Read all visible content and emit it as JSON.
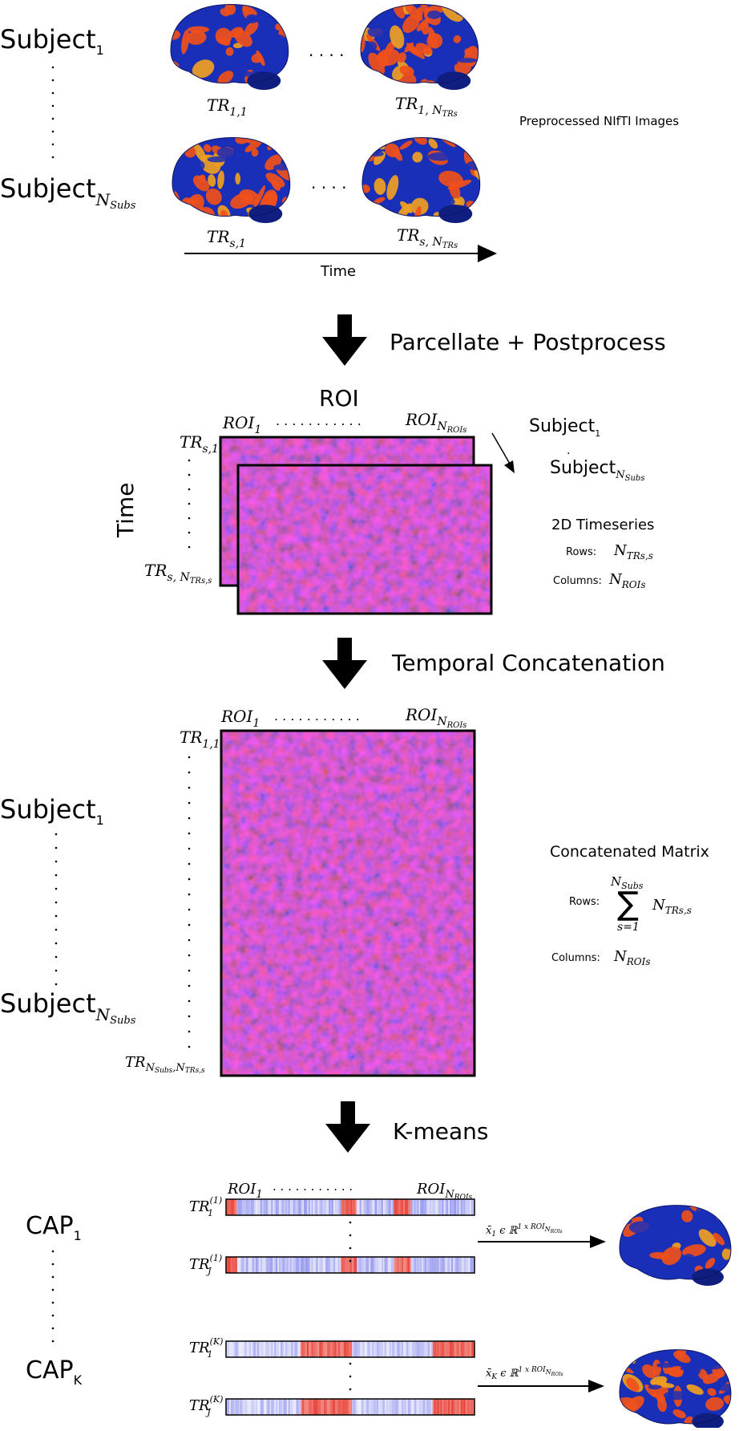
{
  "colors": {
    "matrix_base": "#e6c6e2",
    "heat_red": "#e8443a",
    "heat_blue": "#6f72e8",
    "brain_blue": "#1a2fb8",
    "brain_orange": "#f0501a",
    "arrow": "#000000"
  },
  "top": {
    "subject_1": {
      "base": "Subject",
      "sub": "1"
    },
    "subject_n": {
      "base": "Subject",
      "sub": "N",
      "subsub": "Subs"
    },
    "tr_1_1": {
      "base": "TR",
      "sub": "1,1"
    },
    "tr_1_n": {
      "base": "TR",
      "sub": "1, N",
      "subsub": "TRs"
    },
    "tr_s_1": {
      "base": "TR",
      "sub": "s,1"
    },
    "tr_s_n": {
      "base": "TR",
      "sub": "s, N",
      "subsub": "TRs"
    },
    "time_label": "Time",
    "side_label": "Preprocessed NIfTI Images",
    "dots": ". . . ."
  },
  "steps": {
    "step1": "Parcellate + Postprocess",
    "step2": "Temporal Concatenation",
    "step3": "K-means"
  },
  "timeseries": {
    "roi_title": "ROI",
    "time_title": "Time",
    "roi_1": {
      "base": "ROI",
      "sub": "1"
    },
    "roi_n": {
      "base": "ROI",
      "sub": "N",
      "subsub": "ROIs"
    },
    "tr_s_1": {
      "base": "TR",
      "sub": "s,1"
    },
    "tr_s_n": {
      "base": "TR",
      "sub": "s, N",
      "subsub": "TRs,s"
    },
    "subject_1": {
      "base": "Subject",
      "sub": "1"
    },
    "subject_n": {
      "base": "Subject",
      "sub": "N",
      "subsub": "Subs"
    },
    "info_title": "2D Timeseries",
    "rows_label": "Rows:",
    "rows_value": {
      "base": "N",
      "sub": "TRs,s"
    },
    "cols_label": "Columns:",
    "cols_value": {
      "base": "N",
      "sub": "ROIs"
    },
    "dots": ". . . . . . . . . . ."
  },
  "concat": {
    "roi_1": {
      "base": "ROI",
      "sub": "1"
    },
    "roi_n": {
      "base": "ROI",
      "sub": "N",
      "subsub": "ROIs"
    },
    "tr_1_1": {
      "base": "TR",
      "sub": "1,1"
    },
    "tr_last": {
      "base": "TR",
      "sub": "N",
      "subsub": "Subs",
      "tail": ",N",
      "tailsub": "TRs,s"
    },
    "subject_1": {
      "base": "Subject",
      "sub": "1"
    },
    "subject_n": {
      "base": "Subject",
      "sub": "N",
      "subsub": "Subs"
    },
    "info_title": "Concatenated Matrix",
    "rows_label": "Rows:",
    "sum_top": {
      "base": "N",
      "sub": "Subs"
    },
    "sum_bottom": "s=1",
    "sum_term": {
      "base": "N",
      "sub": "TRs,s"
    },
    "cols_label": "Columns:",
    "cols_value": {
      "base": "N",
      "sub": "ROIs"
    },
    "dots": ". . . . . . . . . . ."
  },
  "kmeans": {
    "roi_1": {
      "base": "ROI",
      "sub": "1"
    },
    "roi_n": {
      "base": "ROI",
      "sub": "N",
      "subsub": "ROIs"
    },
    "cap_1": {
      "base": "CAP",
      "sub": "1"
    },
    "cap_k": {
      "base": "CAP",
      "sub": "K"
    },
    "tr_1_c1": {
      "base": "TR",
      "sub": "1",
      "sup": "(1)"
    },
    "tr_j_c1": {
      "base": "TR",
      "sub": "J",
      "sup": "(1)"
    },
    "tr_1_ck": {
      "base": "TR",
      "sub": "1",
      "sup": "(K)"
    },
    "tr_j_ck": {
      "base": "TR",
      "sub": "J",
      "sup": "(K)"
    },
    "eq_1": {
      "lhs": "x̄",
      "lhs_sub": "1",
      "mid": " ϵ ℝ",
      "sup": "1 x ROI",
      "supsub": "N",
      "supsubsub": "ROIs"
    },
    "eq_k": {
      "lhs": "x̄",
      "lhs_sub": "K",
      "mid": " ϵ ℝ",
      "sup": "1 x ROI",
      "supsub": "N",
      "supsubsub": "ROIs"
    },
    "dots": ". . . . . . . . . . ."
  }
}
